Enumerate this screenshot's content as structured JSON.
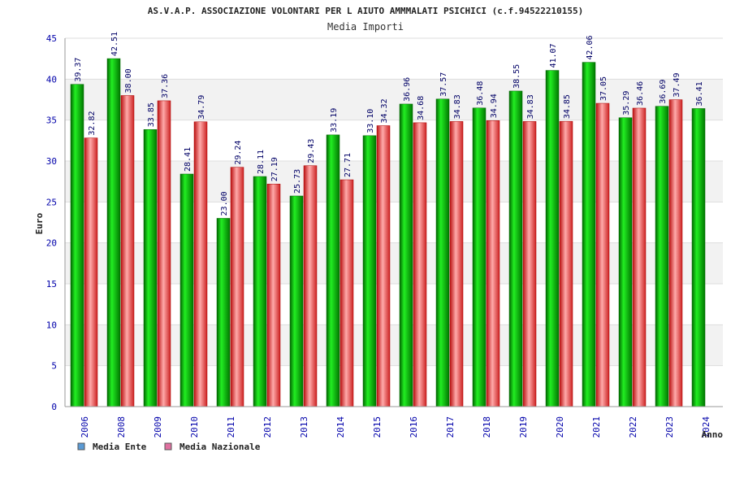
{
  "chart_data": {
    "type": "bar",
    "title": "AS.V.A.P. ASSOCIAZIONE VOLONTARI PER L AIUTO AMMMALATI PSICHICI (c.f.94522210155)",
    "subtitle": "Media Importi",
    "xlabel": "Anno",
    "ylabel": "Euro",
    "ylim": [
      0,
      45
    ],
    "yticks": [
      0,
      5,
      10,
      15,
      20,
      25,
      30,
      35,
      40,
      45
    ],
    "grid": true,
    "legend_position": "bottom-left",
    "categories": [
      "2006",
      "2008",
      "2009",
      "2010",
      "2011",
      "2012",
      "2013",
      "2014",
      "2015",
      "2016",
      "2017",
      "2018",
      "2019",
      "2020",
      "2021",
      "2022",
      "2023",
      "2024"
    ],
    "series": [
      {
        "name": "Media Ente",
        "color": "#00aa00",
        "legend_color": "#5b9bd5",
        "values": [
          39.37,
          42.51,
          33.85,
          28.41,
          23.0,
          28.11,
          25.73,
          33.19,
          33.1,
          36.96,
          37.57,
          36.48,
          38.55,
          41.07,
          42.06,
          35.29,
          36.69,
          36.41
        ],
        "labels": [
          "39.37",
          "42.51",
          "33.85",
          "28.41",
          "23.00",
          "28.11",
          "25.73",
          "33.19",
          "33.10",
          "36.96",
          "37.57",
          "36.48",
          "38.55",
          "41.07",
          "42.06",
          "35.29",
          "36.69",
          "36.41"
        ]
      },
      {
        "name": "Media Nazionale",
        "color": "#dd2222",
        "legend_color": "#e070a0",
        "values": [
          32.82,
          38.0,
          37.36,
          34.79,
          29.24,
          27.19,
          29.43,
          27.71,
          34.32,
          34.68,
          34.83,
          34.94,
          34.83,
          34.85,
          37.05,
          36.46,
          37.49,
          null
        ],
        "labels": [
          "32.82",
          "38.00",
          "37.36",
          "34.79",
          "29.24",
          "27.19",
          "29.43",
          "27.71",
          "34.32",
          "34.68",
          "34.83",
          "34.94",
          "34.83",
          "34.85",
          "37.05",
          "36.46",
          "37.49",
          null
        ]
      }
    ]
  }
}
